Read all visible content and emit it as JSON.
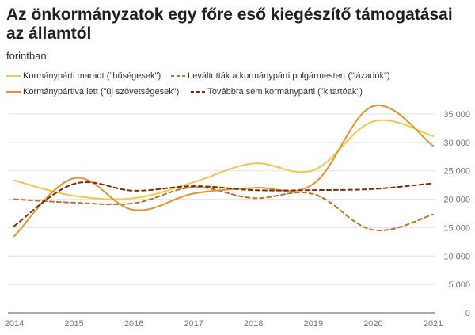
{
  "title": "Az önkormányzatok egy főre eső kiegészítő támogatásai az államtól",
  "subtitle": "forintban",
  "chart_data": {
    "type": "line",
    "x": [
      "2014",
      "2015",
      "2016",
      "2017",
      "2018",
      "2019",
      "2020",
      "2021"
    ],
    "ylim": [
      0,
      35000
    ],
    "yticks": [
      0,
      5000,
      10000,
      15000,
      20000,
      25000,
      30000,
      35000
    ],
    "ytick_labels": [
      "0",
      "5 000",
      "10 000",
      "15 000",
      "20 000",
      "25 000",
      "30 000",
      "35 000"
    ],
    "grid": "horizontal",
    "legend_position": "top",
    "series": [
      {
        "name": "Kormánypárti maradt (\"hűségesek\")",
        "color": "#f2c94c",
        "dash": "solid",
        "values": [
          23300,
          20600,
          20200,
          23000,
          26300,
          25100,
          33700,
          31100
        ]
      },
      {
        "name": "Leváltották a kormánypárti polgármestert (\"lázadók\")",
        "color": "#b8742a",
        "dash": "dashed",
        "values": [
          20000,
          19400,
          19300,
          22100,
          20200,
          20900,
          14600,
          17300
        ]
      },
      {
        "name": "Kormánypártivá lett (\"új szövetségesek\")",
        "color": "#e8922e",
        "dash": "solid",
        "values": [
          13500,
          23700,
          18100,
          21000,
          22000,
          22700,
          36400,
          29400
        ]
      },
      {
        "name": "Továbbra sem kormánypárti (\"kitartóak\")",
        "color": "#7a2e10",
        "dash": "dashed",
        "values": [
          15300,
          22700,
          21500,
          22300,
          21600,
          21600,
          21800,
          22800
        ]
      }
    ]
  }
}
